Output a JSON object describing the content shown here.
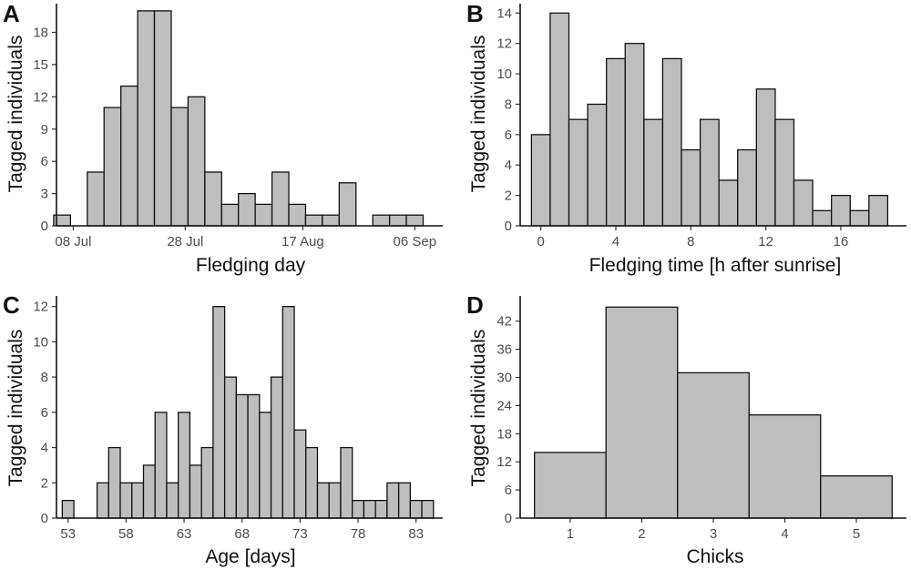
{
  "colors": {
    "bar_fill": "#bebebe",
    "bar_stroke": "#111111",
    "axis": "#111111",
    "tick_text": "#4d4d4d"
  },
  "chart_data": [
    {
      "id": "A",
      "panel_label": "A",
      "type": "bar",
      "title": "",
      "xlabel": "Fledging day",
      "ylabel": "Tagged individuals",
      "bin_width_days": 3,
      "x_origin_label": "08 Jul = day 0",
      "x_range": [
        -3,
        66
      ],
      "bins_x": [
        -2,
        1,
        4,
        7,
        10,
        13,
        16,
        19,
        22,
        25,
        28,
        31,
        34,
        37,
        40,
        43,
        46,
        49,
        52,
        55,
        58,
        61
      ],
      "values": [
        1,
        0,
        5,
        11,
        13,
        20,
        20,
        11,
        12,
        5,
        2,
        3,
        2,
        5,
        2,
        1,
        1,
        4,
        0,
        1,
        1,
        1
      ],
      "ylim": [
        0,
        20.5
      ],
      "yticks": [
        0,
        3,
        6,
        9,
        12,
        15,
        18
      ],
      "xticks": [
        0,
        20,
        41,
        61
      ],
      "xtick_labels": [
        "08 Jul",
        "28 Jul",
        "17 Aug",
        "06 Sep"
      ],
      "grid": false
    },
    {
      "id": "B",
      "panel_label": "B",
      "type": "bar",
      "title": "",
      "xlabel": "Fledging time [h after sunrise]",
      "ylabel": "Tagged individuals",
      "bin_width": 1,
      "x_range": [
        -1.1,
        19.5
      ],
      "bins_x": [
        0,
        1,
        2,
        3,
        4,
        5,
        6,
        7,
        8,
        9,
        10,
        11,
        12,
        13,
        14,
        15,
        16,
        17,
        18
      ],
      "values": [
        6,
        14,
        7,
        8,
        11,
        12,
        7,
        11,
        5,
        7,
        3,
        5,
        9,
        7,
        3,
        1,
        2,
        1,
        2
      ],
      "ylim": [
        0,
        14.5
      ],
      "yticks": [
        0,
        2,
        4,
        6,
        8,
        10,
        12,
        14
      ],
      "xticks": [
        0,
        4,
        8,
        12,
        16
      ],
      "xtick_labels": [
        "0",
        "4",
        "8",
        "12",
        "16"
      ],
      "grid": false
    },
    {
      "id": "C",
      "panel_label": "C",
      "type": "bar",
      "title": "",
      "xlabel": "Age [days]",
      "ylabel": "Tagged individuals",
      "bin_width": 1,
      "x_range": [
        52,
        85.3
      ],
      "bins_x": [
        53,
        54,
        55,
        56,
        57,
        58,
        59,
        60,
        61,
        62,
        63,
        64,
        65,
        66,
        67,
        68,
        69,
        70,
        71,
        72,
        73,
        74,
        75,
        76,
        77,
        78,
        79,
        80,
        81,
        82,
        83,
        84
      ],
      "values": [
        1,
        0,
        0,
        2,
        4,
        2,
        2,
        3,
        6,
        2,
        6,
        3,
        4,
        12,
        8,
        7,
        7,
        6,
        8,
        12,
        5,
        4,
        2,
        2,
        4,
        1,
        1,
        1,
        2,
        2,
        1,
        1
      ],
      "ylim": [
        0,
        12.5
      ],
      "yticks": [
        0,
        2,
        4,
        6,
        8,
        10,
        12
      ],
      "xticks": [
        53,
        58,
        63,
        68,
        73,
        78,
        83
      ],
      "xtick_labels": [
        "53",
        "58",
        "63",
        "68",
        "73",
        "78",
        "83"
      ],
      "grid": false
    },
    {
      "id": "D",
      "panel_label": "D",
      "type": "bar",
      "title": "",
      "xlabel": "Chicks",
      "ylabel": "Tagged individuals",
      "bin_width": 1,
      "x_range": [
        0.3,
        5.7
      ],
      "bins_x": [
        1,
        2,
        3,
        4,
        5
      ],
      "values": [
        14,
        45,
        31,
        22,
        9
      ],
      "ylim": [
        0,
        47
      ],
      "yticks": [
        0,
        6,
        12,
        18,
        24,
        30,
        36,
        42
      ],
      "xticks": [
        1,
        2,
        3,
        4,
        5
      ],
      "xtick_labels": [
        "1",
        "2",
        "3",
        "4",
        "5"
      ],
      "grid": false
    }
  ]
}
